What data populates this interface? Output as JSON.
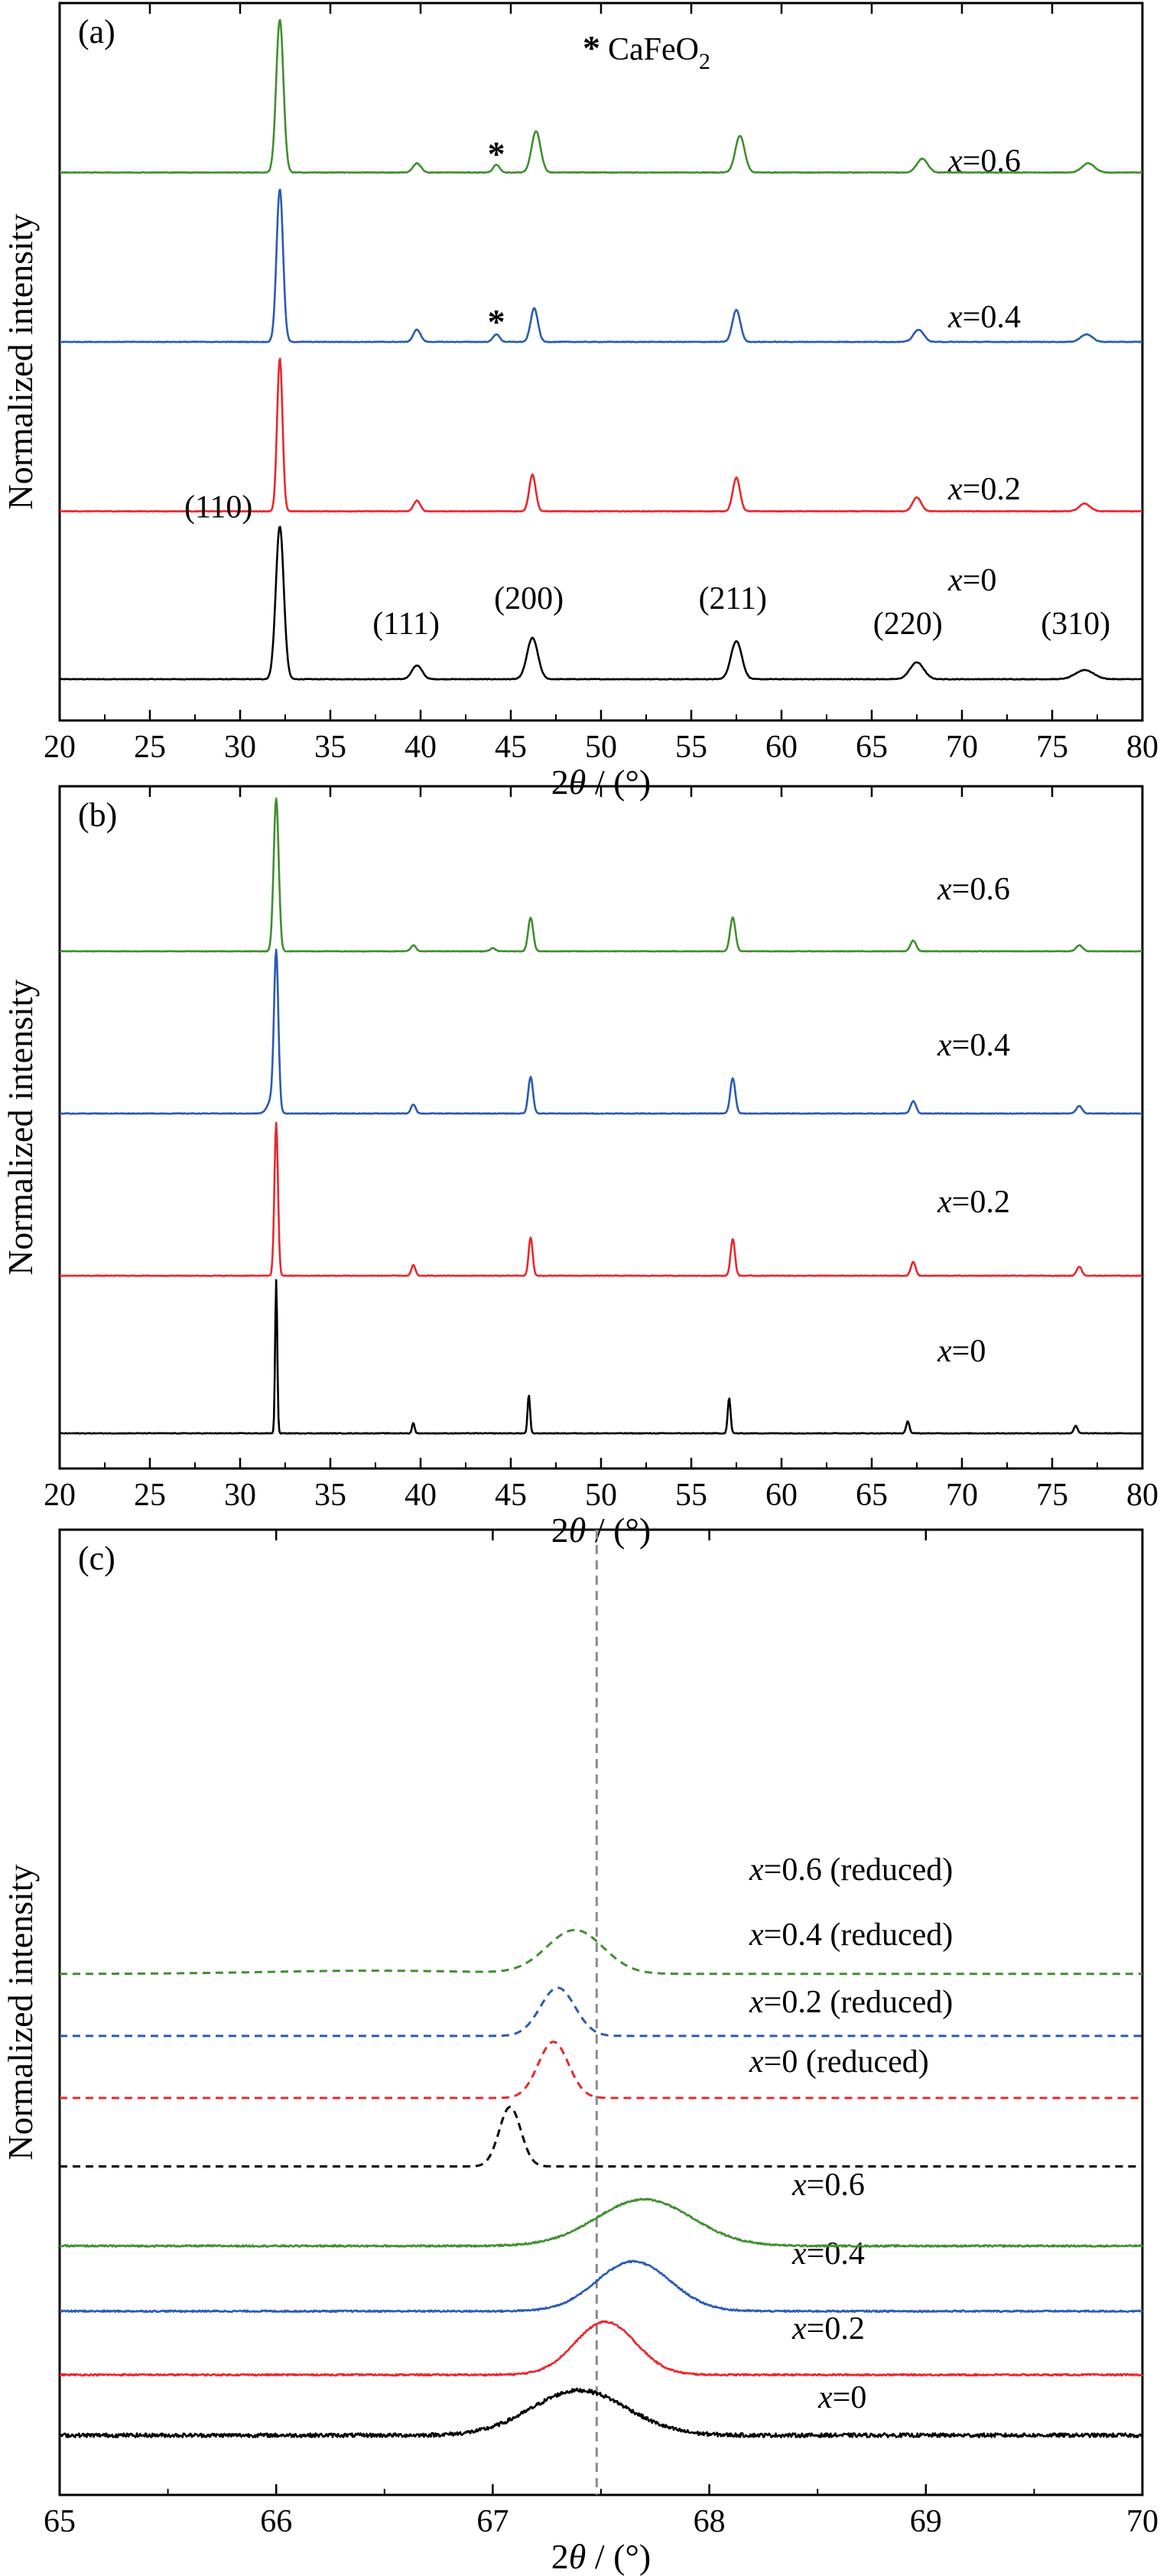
{
  "figure": {
    "panels": [
      {
        "label": "(a)",
        "ylabel": "Normalized intensity",
        "xlabel_prefix": "2",
        "xlabel_theta": "θ",
        "xlabel_suffix": " / (°)"
      },
      {
        "label": "(b)",
        "ylabel": "Normalized intensity",
        "xlabel_prefix": "2",
        "xlabel_theta": "θ",
        "xlabel_suffix": " / (°)"
      },
      {
        "label": "(c)",
        "ylabel": "Normalized intensity",
        "xlabel_prefix": "2",
        "xlabel_theta": "θ",
        "xlabel_suffix": " / (°)"
      }
    ],
    "legend_a": {
      "marker": "*",
      "text": "CaFeO",
      "subscript": "2"
    }
  },
  "chart_data": [
    {
      "panel": "(a)",
      "type": "line",
      "xlabel": "2θ / (°)",
      "ylabel": "Normalized intensity",
      "xlim": [
        20,
        80
      ],
      "xticks": [
        20,
        25,
        30,
        35,
        40,
        45,
        50,
        55,
        60,
        65,
        70,
        75,
        80
      ],
      "colors": {
        "x=0": "#000000",
        "x=0.2": "#e8282d",
        "x=0.4": "#2a5bb0",
        "x=0.6": "#3f8f2f"
      },
      "series": [
        {
          "name": "x=0",
          "x_prefix": "x",
          "value_text": "=0",
          "color": "#000000",
          "offset": 0,
          "peaks": [
            {
              "x": 32.2,
              "h": 1.0,
              "w": 0.22
            },
            {
              "x": 39.8,
              "h": 0.09,
              "w": 0.28
            },
            {
              "x": 46.2,
              "h": 0.27,
              "w": 0.3
            },
            {
              "x": 57.5,
              "h": 0.25,
              "w": 0.3
            },
            {
              "x": 67.5,
              "h": 0.11,
              "w": 0.38
            },
            {
              "x": 76.8,
              "h": 0.06,
              "w": 0.5
            }
          ]
        },
        {
          "name": "x=0.2",
          "x_prefix": "x",
          "value_text": "=0.2",
          "color": "#e8282d",
          "offset": 1.12,
          "peaks": [
            {
              "x": 32.2,
              "h": 1.0,
              "w": 0.15
            },
            {
              "x": 39.8,
              "h": 0.07,
              "w": 0.18
            },
            {
              "x": 46.2,
              "h": 0.24,
              "w": 0.18
            },
            {
              "x": 57.5,
              "h": 0.22,
              "w": 0.2
            },
            {
              "x": 67.5,
              "h": 0.09,
              "w": 0.24
            },
            {
              "x": 76.8,
              "h": 0.05,
              "w": 0.3
            }
          ]
        },
        {
          "name": "x=0.4",
          "x_prefix": "x",
          "value_text": "=0.4",
          "color": "#2a5bb0",
          "offset": 2.25,
          "peaks": [
            {
              "x": 32.2,
              "h": 1.0,
              "w": 0.18
            },
            {
              "x": 39.8,
              "h": 0.08,
              "w": 0.2
            },
            {
              "x": 44.2,
              "h": 0.05,
              "w": 0.18
            },
            {
              "x": 46.3,
              "h": 0.22,
              "w": 0.2
            },
            {
              "x": 57.5,
              "h": 0.21,
              "w": 0.22
            },
            {
              "x": 67.6,
              "h": 0.08,
              "w": 0.28
            },
            {
              "x": 76.9,
              "h": 0.05,
              "w": 0.32
            }
          ]
        },
        {
          "name": "x=0.6",
          "x_prefix": "x",
          "value_text": "=0.6",
          "color": "#3f8f2f",
          "offset": 3.38,
          "peaks": [
            {
              "x": 32.2,
              "h": 1.0,
              "w": 0.2
            },
            {
              "x": 39.8,
              "h": 0.06,
              "w": 0.22
            },
            {
              "x": 44.2,
              "h": 0.05,
              "w": 0.18
            },
            {
              "x": 46.4,
              "h": 0.27,
              "w": 0.25
            },
            {
              "x": 57.7,
              "h": 0.24,
              "w": 0.26
            },
            {
              "x": 67.8,
              "h": 0.09,
              "w": 0.3
            },
            {
              "x": 77.0,
              "h": 0.06,
              "w": 0.35
            }
          ]
        }
      ],
      "annotations": [
        {
          "text": "(110)",
          "x": 28.8,
          "level": 1.08
        },
        {
          "text": "(111)",
          "x": 39.2,
          "level": 0.3
        },
        {
          "text": "(200)",
          "x": 46.0,
          "level": 0.47
        },
        {
          "text": "(211)",
          "x": 57.3,
          "level": 0.47
        },
        {
          "text": "(220)",
          "x": 67.0,
          "level": 0.3
        },
        {
          "text": "(310)",
          "x": 76.3,
          "level": 0.3
        },
        {
          "text": "*",
          "x": 44.2,
          "level": 2.48
        },
        {
          "text": "*",
          "x": 44.2,
          "level": 3.6
        }
      ]
    },
    {
      "panel": "(b)",
      "type": "line",
      "xlabel": "2θ / (°)",
      "ylabel": "Normalized intensity",
      "xlim": [
        20,
        80
      ],
      "xticks": [
        20,
        25,
        30,
        35,
        40,
        45,
        50,
        55,
        60,
        65,
        70,
        75,
        80
      ],
      "series": [
        {
          "name": "x=0",
          "x_prefix": "x",
          "value_text": "=0",
          "color": "#000000",
          "offset": 0,
          "peaks": [
            {
              "x": 32.0,
              "h": 1.0,
              "w": 0.06
            },
            {
              "x": 39.6,
              "h": 0.07,
              "w": 0.07
            },
            {
              "x": 46.0,
              "h": 0.25,
              "w": 0.07
            },
            {
              "x": 57.1,
              "h": 0.23,
              "w": 0.08
            },
            {
              "x": 67.0,
              "h": 0.08,
              "w": 0.09
            },
            {
              "x": 76.3,
              "h": 0.05,
              "w": 0.1
            }
          ]
        },
        {
          "name": "x=0.2",
          "x_prefix": "x",
          "value_text": "=0.2",
          "color": "#e8282d",
          "offset": 1.02,
          "peaks": [
            {
              "x": 32.0,
              "h": 1.0,
              "w": 0.1
            },
            {
              "x": 39.6,
              "h": 0.07,
              "w": 0.11
            },
            {
              "x": 46.1,
              "h": 0.25,
              "w": 0.11
            },
            {
              "x": 57.3,
              "h": 0.24,
              "w": 0.12
            },
            {
              "x": 67.3,
              "h": 0.09,
              "w": 0.13
            },
            {
              "x": 76.5,
              "h": 0.06,
              "w": 0.14
            }
          ]
        },
        {
          "name": "x=0.4",
          "x_prefix": "x",
          "value_text": "=0.4",
          "color": "#2a5bb0",
          "offset": 2.07,
          "peaks": [
            {
              "x": 31.8,
              "h": 0.1,
              "w": 0.25
            },
            {
              "x": 32.0,
              "h": 1.0,
              "w": 0.12
            },
            {
              "x": 39.6,
              "h": 0.06,
              "w": 0.13
            },
            {
              "x": 46.1,
              "h": 0.24,
              "w": 0.13
            },
            {
              "x": 57.3,
              "h": 0.23,
              "w": 0.14
            },
            {
              "x": 67.3,
              "h": 0.08,
              "w": 0.15
            },
            {
              "x": 76.5,
              "h": 0.05,
              "w": 0.16
            }
          ]
        },
        {
          "name": "x=0.6",
          "x_prefix": "x",
          "value_text": "=0.6",
          "color": "#3f8f2f",
          "offset": 3.12,
          "peaks": [
            {
              "x": 32.0,
              "h": 1.0,
              "w": 0.14
            },
            {
              "x": 39.6,
              "h": 0.04,
              "w": 0.14
            },
            {
              "x": 44.0,
              "h": 0.02,
              "w": 0.15
            },
            {
              "x": 46.1,
              "h": 0.22,
              "w": 0.14
            },
            {
              "x": 57.3,
              "h": 0.22,
              "w": 0.15
            },
            {
              "x": 67.3,
              "h": 0.07,
              "w": 0.16
            },
            {
              "x": 76.5,
              "h": 0.04,
              "w": 0.18
            }
          ]
        }
      ]
    },
    {
      "panel": "(c)",
      "type": "line",
      "xlabel": "2θ / (°)",
      "ylabel": "Normalized intensity",
      "xlim": [
        65,
        70
      ],
      "xticks": [
        65,
        66,
        67,
        68,
        69,
        70
      ],
      "reference_line": {
        "x": 67.48,
        "style": "dashed",
        "color": "#8c8c8c"
      },
      "series": [
        {
          "name": "x=0",
          "x_prefix": "x",
          "value_text": "=0",
          "color": "#000000",
          "dash": false,
          "offset": 0,
          "noise": 0.012,
          "peaks": [
            {
              "x": 67.4,
              "h": 0.28,
              "w": 0.22
            }
          ]
        },
        {
          "name": "x=0.2",
          "x_prefix": "x",
          "value_text": "=0.2",
          "color": "#e8282d",
          "dash": false,
          "offset": 0.38,
          "noise": 0.005,
          "peaks": [
            {
              "x": 67.52,
              "h": 0.33,
              "w": 0.14
            }
          ]
        },
        {
          "name": "x=0.4",
          "x_prefix": "x",
          "value_text": "=0.4",
          "color": "#2a5bb0",
          "dash": false,
          "offset": 0.78,
          "noise": 0.005,
          "peaks": [
            {
              "x": 67.65,
              "h": 0.31,
              "w": 0.17
            }
          ]
        },
        {
          "name": "x=0.6",
          "x_prefix": "x",
          "value_text": "=0.6",
          "color": "#3f8f2f",
          "dash": false,
          "offset": 1.19,
          "noise": 0.005,
          "peaks": [
            {
              "x": 67.7,
              "h": 0.29,
              "w": 0.22
            }
          ]
        },
        {
          "name": "x=0 (reduced)",
          "x_prefix": "x",
          "value_text": "=0 (reduced)",
          "color": "#000000",
          "dash": true,
          "offset": 1.69,
          "noise": 0,
          "peaks": [
            {
              "x": 67.08,
              "h": 0.37,
              "w": 0.05
            }
          ]
        },
        {
          "name": "x=0.2 (reduced)",
          "x_prefix": "x",
          "value_text": "=0.2 (reduced)",
          "color": "#e8282d",
          "dash": true,
          "offset": 2.12,
          "noise": 0,
          "peaks": [
            {
              "x": 67.28,
              "h": 0.35,
              "w": 0.07
            }
          ]
        },
        {
          "name": "x=0.4 (reduced)",
          "x_prefix": "x",
          "value_text": "=0.4 (reduced)",
          "color": "#2a5bb0",
          "dash": true,
          "offset": 2.51,
          "noise": 0,
          "peaks": [
            {
              "x": 67.3,
              "h": 0.3,
              "w": 0.08
            }
          ]
        },
        {
          "name": "x=0.6 (reduced)",
          "x_prefix": "x",
          "value_text": "=0.6 (reduced)",
          "color": "#3f8f2f",
          "dash": true,
          "offset": 2.9,
          "noise": 0,
          "peaks": [
            {
              "x": 67.38,
              "h": 0.27,
              "w": 0.13
            },
            {
              "x": 66.45,
              "h": 0.02,
              "w": 0.5
            }
          ]
        }
      ]
    }
  ]
}
